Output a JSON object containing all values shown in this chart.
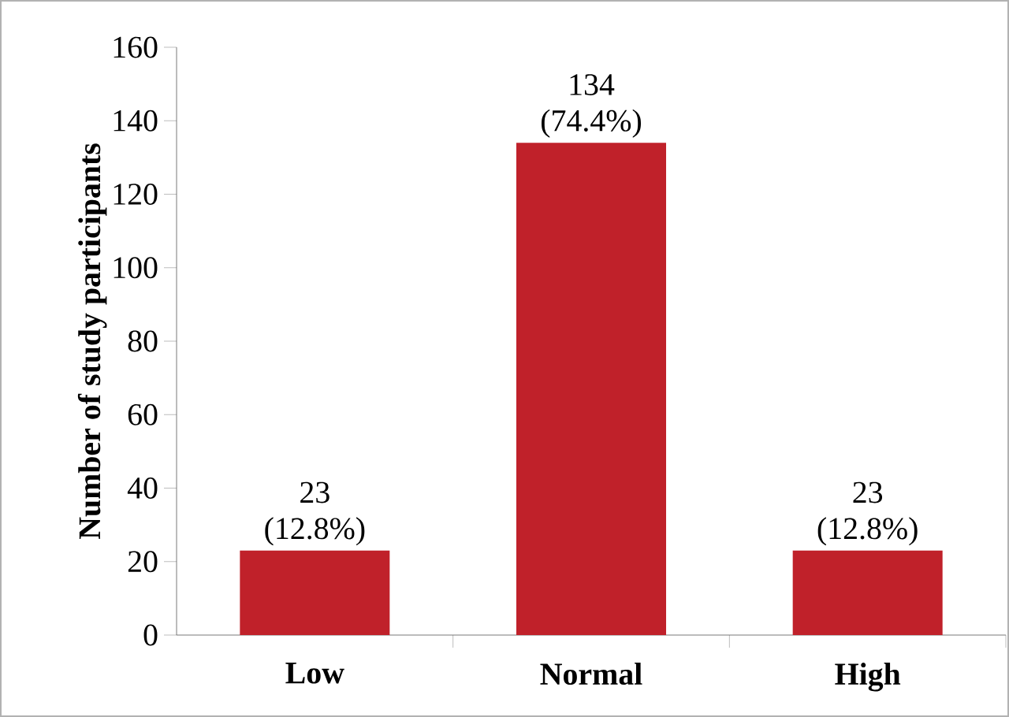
{
  "chart_data": {
    "type": "bar",
    "ylabel": "Number of study participants",
    "categories": [
      "Low",
      "Normal",
      "High"
    ],
    "values": [
      23,
      134,
      23
    ],
    "color": "#c0212a",
    "value_labels": [
      "23 (12.8%)",
      "134 (74.4%)",
      "23 (12.8%)"
    ],
    "ylim": [
      0,
      160
    ],
    "yticks": [
      0,
      20,
      40,
      60,
      80,
      100,
      120,
      140,
      160
    ],
    "grid": false
  }
}
